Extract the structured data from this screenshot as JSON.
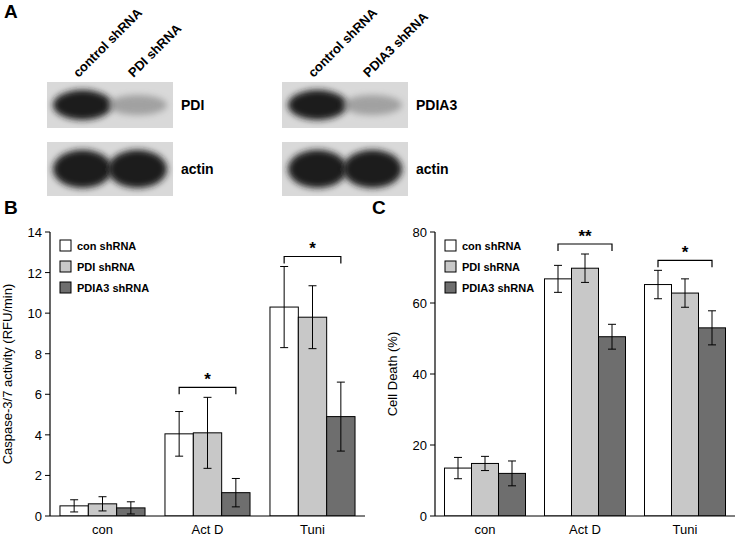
{
  "blot": {
    "label": "A",
    "groups": [
      {
        "lanes": [
          "control shRNA",
          "PDI shRNA"
        ],
        "bands": [
          "PDI",
          "actin"
        ]
      },
      {
        "lanes": [
          "control shRNA",
          "PDIA3 shRNA"
        ],
        "bands": [
          "PDIA3",
          "actin"
        ]
      }
    ]
  },
  "chart_data": [
    {
      "type": "bar",
      "title": "B",
      "y_label": "Caspase-3/7 activity (RFU/min)",
      "categories": [
        "con",
        "Act D",
        "Tuni"
      ],
      "series": [
        {
          "name": "con shRNA",
          "color": "#ffffff",
          "values": [
            0.5,
            4.05,
            10.3
          ],
          "errors": [
            0.3,
            1.1,
            2.0
          ]
        },
        {
          "name": "PDI shRNA",
          "color": "#c8c8c8",
          "values": [
            0.6,
            4.1,
            9.8
          ],
          "errors": [
            0.35,
            1.75,
            1.55
          ]
        },
        {
          "name": "PDIA3 shRNA",
          "color": "#6e6e6e",
          "values": [
            0.4,
            1.15,
            4.9
          ],
          "errors": [
            0.3,
            0.7,
            1.7
          ]
        }
      ],
      "annotations": [
        {
          "category": "Act D",
          "text": "*"
        },
        {
          "category": "Tuni",
          "text": "*"
        }
      ],
      "ylim": [
        0,
        14
      ],
      "yticks": [
        0,
        2,
        4,
        6,
        8,
        10,
        12,
        14
      ],
      "legend": "upper left",
      "grid": false
    },
    {
      "type": "bar",
      "title": "C",
      "y_label": "Cell Death (%)",
      "categories": [
        "con",
        "Act D",
        "Tuni"
      ],
      "series": [
        {
          "name": "con shRNA",
          "color": "#ffffff",
          "values": [
            13.5,
            66.8,
            65.2
          ],
          "errors": [
            3.0,
            3.8,
            4.0
          ]
        },
        {
          "name": "PDI shRNA",
          "color": "#c8c8c8",
          "values": [
            14.8,
            69.8,
            62.8
          ],
          "errors": [
            2.0,
            4.0,
            4.0
          ]
        },
        {
          "name": "PDIA3 shRNA",
          "color": "#6e6e6e",
          "values": [
            12.0,
            50.5,
            53.0
          ],
          "errors": [
            3.5,
            3.5,
            4.8
          ]
        }
      ],
      "annotations": [
        {
          "category": "Act D",
          "text": "**"
        },
        {
          "category": "Tuni",
          "text": "*"
        }
      ],
      "ylim": [
        0,
        80
      ],
      "yticks": [
        0,
        20,
        40,
        60,
        80
      ],
      "legend": "upper left",
      "grid": false
    }
  ]
}
